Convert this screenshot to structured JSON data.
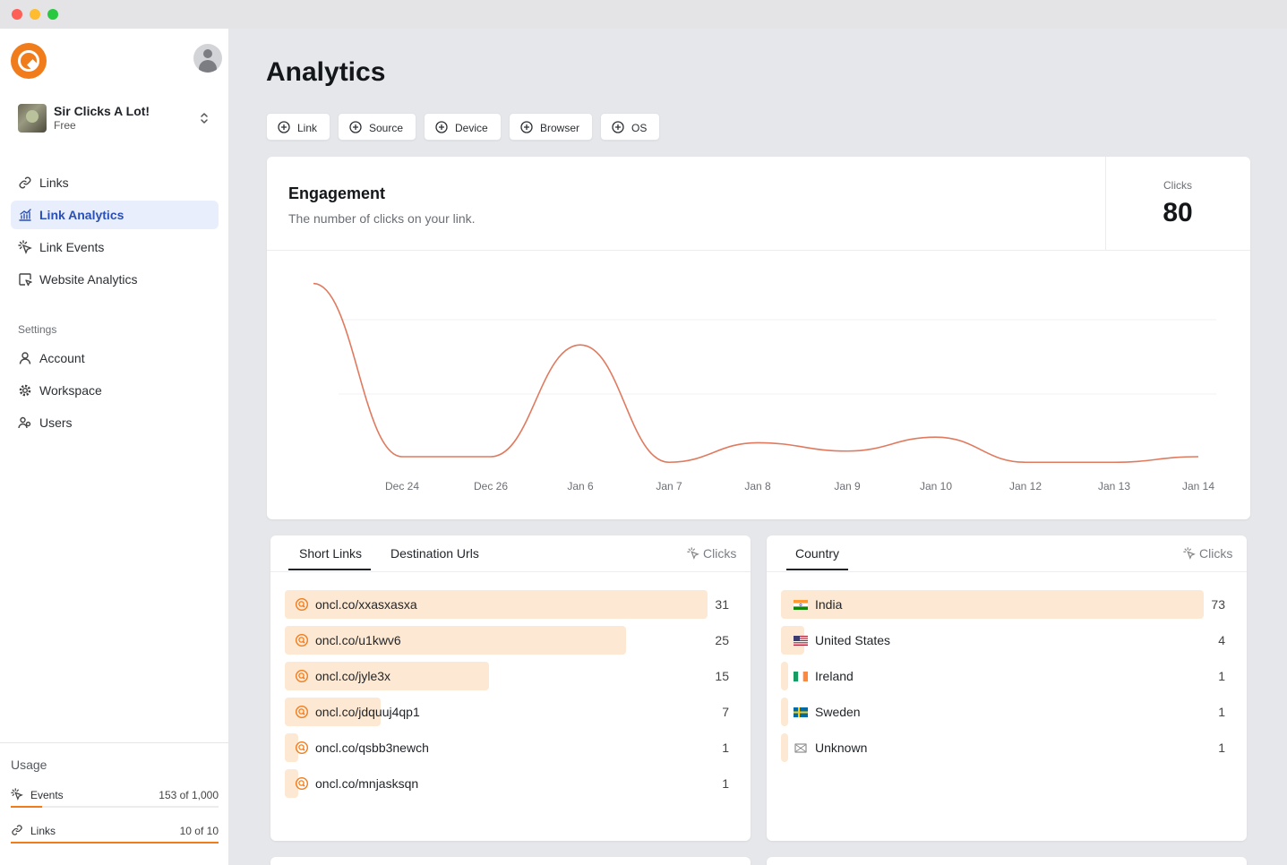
{
  "sidebar": {
    "workspace": {
      "name": "Sir Clicks A Lot!",
      "plan": "Free"
    },
    "nav": [
      {
        "label": "Links"
      },
      {
        "label": "Link Analytics",
        "active": true
      },
      {
        "label": "Link Events"
      },
      {
        "label": "Website Analytics"
      }
    ],
    "settings_label": "Settings",
    "settings": [
      {
        "label": "Account"
      },
      {
        "label": "Workspace"
      },
      {
        "label": "Users"
      }
    ],
    "usage": {
      "title": "Usage",
      "events": {
        "label": "Events",
        "value": "153 of 1,000",
        "fraction": 0.153
      },
      "links": {
        "label": "Links",
        "value": "10 of 10",
        "fraction": 1.0
      }
    }
  },
  "main": {
    "title": "Analytics",
    "filters": [
      "Link",
      "Source",
      "Device",
      "Browser",
      "OS"
    ],
    "engagement": {
      "title": "Engagement",
      "subtitle": "The number of clicks on your link.",
      "clicks_label": "Clicks",
      "clicks_value": "80"
    },
    "short_links": {
      "tabs": [
        "Short Links",
        "Destination Urls"
      ],
      "clicks_label": "Clicks",
      "rows": [
        {
          "label": "oncl.co/xxasxasxa",
          "value": 31
        },
        {
          "label": "oncl.co/u1kwv6",
          "value": 25
        },
        {
          "label": "oncl.co/jyle3x",
          "value": 15
        },
        {
          "label": "oncl.co/jdquuj4qp1",
          "value": 7
        },
        {
          "label": "oncl.co/qsbb3newch",
          "value": 1
        },
        {
          "label": "oncl.co/mnjasksqn",
          "value": 1
        }
      ]
    },
    "country": {
      "tabs": [
        "Country"
      ],
      "clicks_label": "Clicks",
      "rows": [
        {
          "label": "India",
          "value": 73,
          "flag": "india"
        },
        {
          "label": "United States",
          "value": 4,
          "flag": "us"
        },
        {
          "label": "Ireland",
          "value": 1,
          "flag": "ireland"
        },
        {
          "label": "Sweden",
          "value": 1,
          "flag": "sweden"
        },
        {
          "label": "Unknown",
          "value": 1,
          "flag": "unknown"
        }
      ]
    }
  },
  "chart_data": {
    "type": "line",
    "x_ticks": [
      "Dec 24",
      "Dec 26",
      "Jan 6",
      "Jan 7",
      "Jan 8",
      "Jan 9",
      "Jan 10",
      "Jan 12",
      "Jan 13",
      "Jan 14"
    ],
    "series": [
      {
        "values": [
          {
            "x": "Dec 23",
            "y": 62
          },
          {
            "x": "Dec 24",
            "y": 0
          },
          {
            "x": "Dec 26",
            "y": 0
          },
          {
            "x": "Jan 6",
            "y": 40
          },
          {
            "x": "Jan 7",
            "y": -2
          },
          {
            "x": "Jan 8",
            "y": 5
          },
          {
            "x": "Jan 9",
            "y": 2
          },
          {
            "x": "Jan 10",
            "y": 7
          },
          {
            "x": "Jan 12",
            "y": -2
          },
          {
            "x": "Jan 13",
            "y": -2
          },
          {
            "x": "Jan 14",
            "y": 0
          }
        ]
      }
    ],
    "color": "#e07a5f",
    "grid": true
  }
}
